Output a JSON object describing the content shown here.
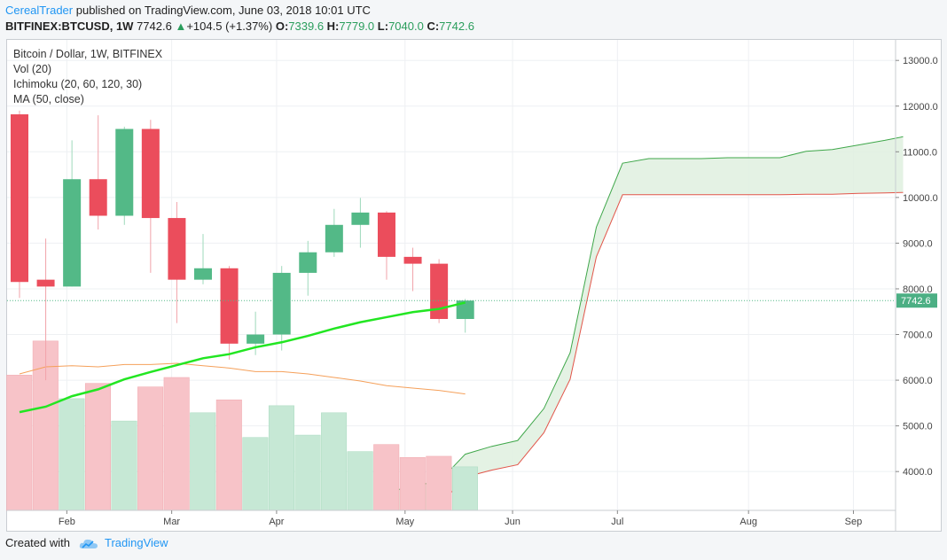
{
  "header": {
    "author": "CerealTrader",
    "published": "published on TradingView.com, June 03, 2018 10:01 UTC",
    "symbol_line": "BITFINEX:BTCUSD, 1W",
    "last": "7742.6",
    "change": "+104.5 (+1.37%)",
    "o_label": "O:",
    "o_value": "7339.6",
    "h_label": "H:",
    "h_value": "7779.0",
    "l_label": "L:",
    "l_value": "7040.0",
    "c_label": "C:",
    "c_value": "7742.6"
  },
  "legend": {
    "title": "Bitcoin / Dollar, 1W, BITFINEX",
    "vol": "Vol (20)",
    "ichimoku": "Ichimoku (20, 60, 120, 30)",
    "ma": "MA (50, close)"
  },
  "footer": {
    "created_with": "Created with",
    "brand": "TradingView"
  },
  "colors": {
    "up": "#53b987",
    "down": "#eb4d5c",
    "ma": "#22e622",
    "cloud_fill": "#dff0df",
    "span_a": "#3fa74a",
    "span_b": "#e2554a",
    "vol_ma": "#f5a05a",
    "grid": "#eef0f3",
    "price_tag": "#4caf84"
  },
  "chart_data": {
    "type": "candlestick",
    "title": "Bitcoin / Dollar, 1W, BITFINEX",
    "current_price": 7742.6,
    "current_price_label": "7742.6",
    "y_axis": {
      "range": [
        3150,
        13450
      ],
      "ticks": [
        4000,
        5000,
        6000,
        7000,
        8000,
        9000,
        10000,
        11000,
        12000,
        13000
      ],
      "tick_labels": [
        "4000.0",
        "5000.0",
        "6000.0",
        "7000.0",
        "8000.0",
        "9000.0",
        "10000.0",
        "11000.0",
        "12000.0",
        "13000.0"
      ]
    },
    "x_axis": {
      "labels": [
        {
          "label": "Feb",
          "week": 1.5
        },
        {
          "label": "Mar",
          "week": 5.5
        },
        {
          "label": "Apr",
          "week": 9.5
        },
        {
          "label": "May",
          "week": 14.4
        },
        {
          "label": "Jun",
          "week": 18.5
        },
        {
          "label": "Jul",
          "week": 22.5
        },
        {
          "label": "Aug",
          "week": 27.5
        },
        {
          "label": "Sep",
          "week": 31.5
        }
      ]
    },
    "candles": [
      {
        "o": 11820,
        "h": 11900,
        "l": 7800,
        "c": 8150
      },
      {
        "o": 8200,
        "h": 9100,
        "l": 6000,
        "c": 8050
      },
      {
        "o": 8050,
        "h": 11250,
        "l": 8050,
        "c": 10400
      },
      {
        "o": 10400,
        "h": 11800,
        "l": 9300,
        "c": 9600
      },
      {
        "o": 9600,
        "h": 11550,
        "l": 9400,
        "c": 11500
      },
      {
        "o": 11500,
        "h": 11700,
        "l": 8350,
        "c": 9550
      },
      {
        "o": 9550,
        "h": 9900,
        "l": 7250,
        "c": 8200
      },
      {
        "o": 8200,
        "h": 9200,
        "l": 8100,
        "c": 8450
      },
      {
        "o": 8450,
        "h": 8500,
        "l": 6450,
        "c": 6800
      },
      {
        "o": 6800,
        "h": 7500,
        "l": 6550,
        "c": 7000
      },
      {
        "o": 7000,
        "h": 8500,
        "l": 6650,
        "c": 8350
      },
      {
        "o": 8350,
        "h": 9050,
        "l": 7850,
        "c": 8800
      },
      {
        "o": 8800,
        "h": 9750,
        "l": 8700,
        "c": 9400
      },
      {
        "o": 9400,
        "h": 9990,
        "l": 8900,
        "c": 9670
      },
      {
        "o": 9670,
        "h": 9700,
        "l": 8200,
        "c": 8700
      },
      {
        "o": 8700,
        "h": 8900,
        "l": 7950,
        "c": 8550
      },
      {
        "o": 8550,
        "h": 8650,
        "l": 7250,
        "c": 7340
      },
      {
        "o": 7340,
        "h": 7779,
        "l": 7040,
        "c": 7743
      }
    ],
    "volume": [
      {
        "v": 11.5,
        "up": false
      },
      {
        "v": 14.4,
        "up": false
      },
      {
        "v": 9.5,
        "up": true
      },
      {
        "v": 10.8,
        "up": false
      },
      {
        "v": 7.6,
        "up": true
      },
      {
        "v": 10.5,
        "up": false
      },
      {
        "v": 11.3,
        "up": false
      },
      {
        "v": 8.3,
        "up": true
      },
      {
        "v": 9.4,
        "up": false
      },
      {
        "v": 6.2,
        "up": true
      },
      {
        "v": 8.9,
        "up": true
      },
      {
        "v": 6.4,
        "up": true
      },
      {
        "v": 8.3,
        "up": true
      },
      {
        "v": 5.0,
        "up": true
      },
      {
        "v": 5.6,
        "up": false
      },
      {
        "v": 4.5,
        "up": false
      },
      {
        "v": 4.6,
        "up": false
      },
      {
        "v": 3.7,
        "up": true
      }
    ],
    "volume_ma": [
      11.6,
      12.2,
      12.3,
      12.2,
      12.4,
      12.4,
      12.5,
      12.3,
      12.1,
      11.8,
      11.8,
      11.6,
      11.3,
      11.0,
      10.6,
      10.4,
      10.2,
      9.9
    ],
    "volume_scale_max": 40,
    "ma50": [
      5300,
      5420,
      5650,
      5800,
      6020,
      6180,
      6330,
      6480,
      6570,
      6720,
      6830,
      6970,
      7130,
      7270,
      7380,
      7490,
      7560,
      7700
    ],
    "ichimoku_span_a": [
      {
        "w": 14,
        "v": 3150
      },
      {
        "w": 14.1,
        "v": 3550
      },
      {
        "w": 15,
        "v": 3690
      },
      {
        "w": 16,
        "v": 3780
      },
      {
        "w": 17,
        "v": 4380
      },
      {
        "w": 18,
        "v": 4550
      },
      {
        "w": 19,
        "v": 4680
      },
      {
        "w": 20,
        "v": 5380
      },
      {
        "w": 21,
        "v": 6600
      },
      {
        "w": 22,
        "v": 9350
      },
      {
        "w": 23,
        "v": 10750
      },
      {
        "w": 24,
        "v": 10850
      },
      {
        "w": 25,
        "v": 10850
      },
      {
        "w": 26,
        "v": 10850
      },
      {
        "w": 27,
        "v": 10870
      },
      {
        "w": 28,
        "v": 10870
      },
      {
        "w": 29,
        "v": 10870
      },
      {
        "w": 30,
        "v": 11010
      },
      {
        "w": 31,
        "v": 11050
      },
      {
        "w": 32,
        "v": 11150
      },
      {
        "w": 33,
        "v": 11250
      },
      {
        "w": 33.7,
        "v": 11330
      }
    ],
    "ichimoku_span_b": [
      {
        "w": 15.9,
        "v": 3150
      },
      {
        "w": 16,
        "v": 3250
      },
      {
        "w": 17,
        "v": 3880
      },
      {
        "w": 18,
        "v": 4030
      },
      {
        "w": 19,
        "v": 4150
      },
      {
        "w": 20,
        "v": 4850
      },
      {
        "w": 21,
        "v": 6020
      },
      {
        "w": 22,
        "v": 8700
      },
      {
        "w": 23,
        "v": 10060
      },
      {
        "w": 24,
        "v": 10060
      },
      {
        "w": 25,
        "v": 10060
      },
      {
        "w": 26,
        "v": 10060
      },
      {
        "w": 27,
        "v": 10060
      },
      {
        "w": 28,
        "v": 10060
      },
      {
        "w": 29,
        "v": 10060
      },
      {
        "w": 30,
        "v": 10070
      },
      {
        "w": 31,
        "v": 10070
      },
      {
        "w": 32,
        "v": 10090
      },
      {
        "w": 33,
        "v": 10100
      },
      {
        "w": 33.7,
        "v": 10110
      }
    ]
  }
}
